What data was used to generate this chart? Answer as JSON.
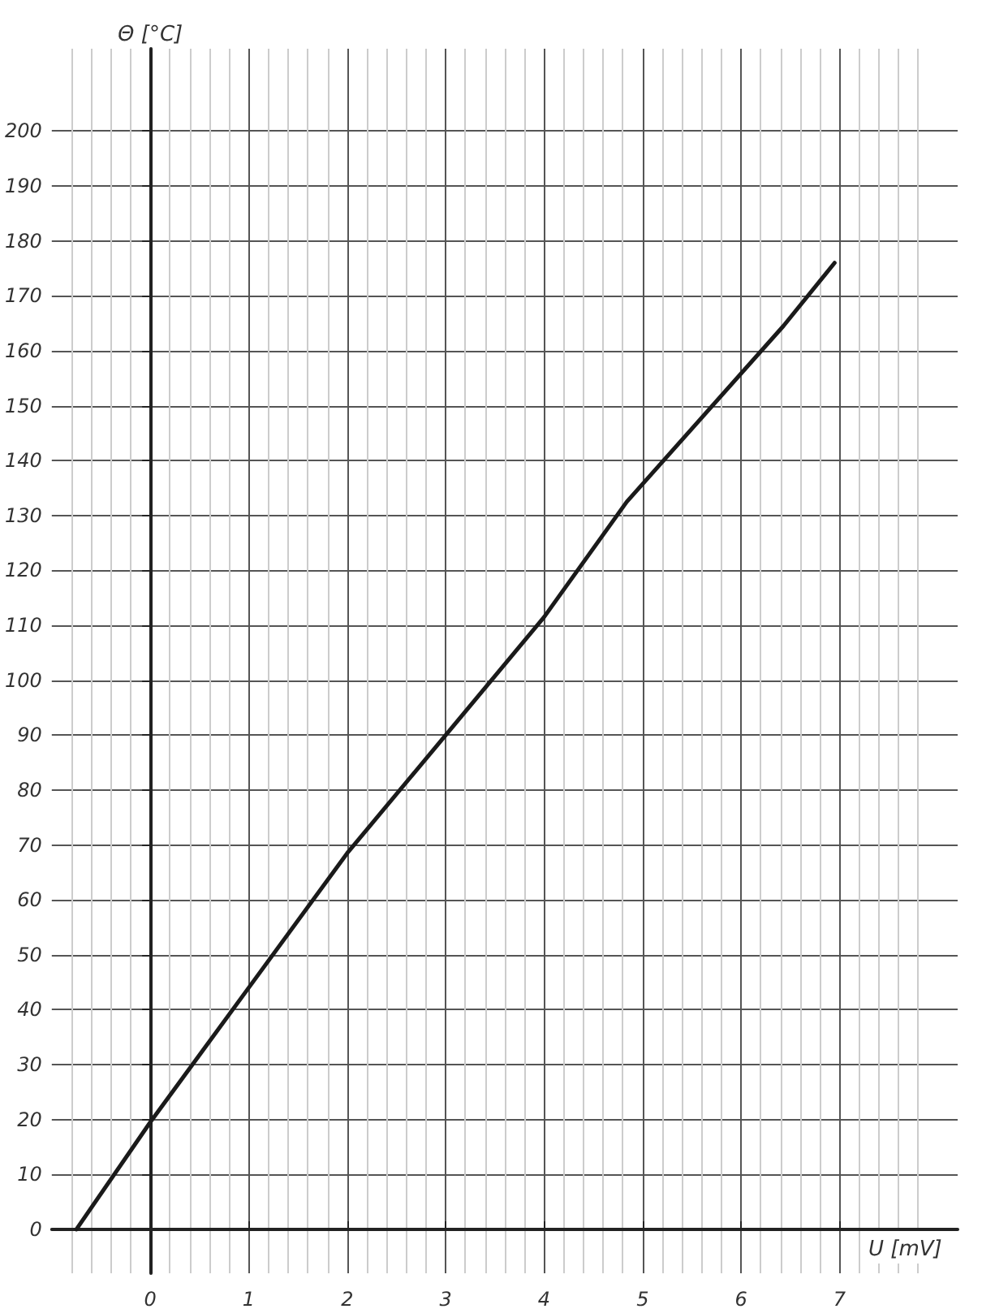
{
  "chart_data": {
    "type": "line",
    "xlabel": "U [mV]",
    "ylabel": "Θ [°C]",
    "x": [
      -0.75,
      0,
      1,
      2,
      3,
      4,
      4.84,
      6.43,
      6.95
    ],
    "values": [
      0,
      19.5,
      44,
      68.5,
      90,
      111.5,
      132.5,
      164.5,
      176
    ],
    "color": "#1a1a1a",
    "xlim": [
      -1,
      8.2
    ],
    "xticks": [
      0,
      1,
      2,
      3,
      4,
      5,
      6,
      7
    ],
    "ylim": [
      -8,
      215
    ],
    "yticks": [
      0,
      10,
      20,
      30,
      40,
      50,
      60,
      70,
      80,
      90,
      100,
      110,
      120,
      130,
      140,
      150,
      160,
      170,
      180,
      190,
      200
    ],
    "grid": true,
    "marker": "none",
    "line_style": "solid"
  }
}
